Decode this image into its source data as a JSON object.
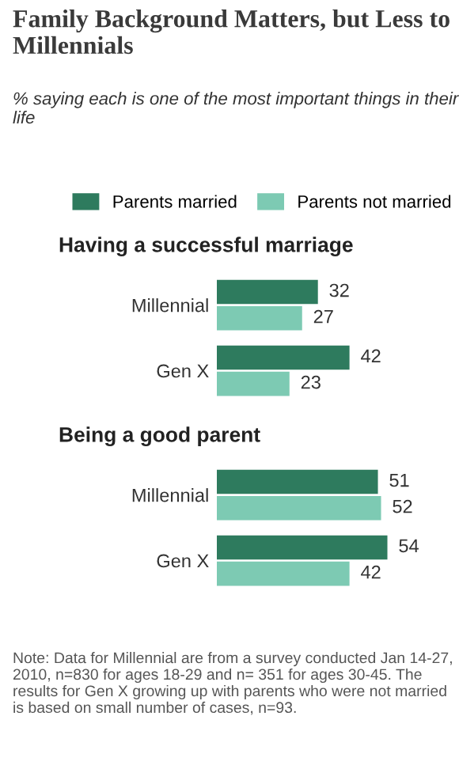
{
  "chart_data": [
    {
      "type": "bar",
      "orientation": "horizontal",
      "title": "Having a successful marriage",
      "annotations": [
        "Family Background Matters, but Less to Millennials",
        "% saying each is one of the most important things in their life"
      ],
      "categories": [
        "Millennial",
        "Gen X"
      ],
      "series": [
        {
          "name": "Parents married",
          "color": "#2e7b5e",
          "values": [
            32,
            42
          ]
        },
        {
          "name": "Parents not married",
          "color": "#7dcab3",
          "values": [
            27,
            23
          ]
        }
      ],
      "data_labels": true,
      "legend": "top",
      "grid": false
    },
    {
      "type": "bar",
      "orientation": "horizontal",
      "title": "Being a good parent",
      "annotations": [
        "Note: Data for Millennial are from a survey conducted Jan 14-27, 2010, n=830 for ages 18-29 and n= 351 for ages 30-45. The results for Gen X growing up with parents who were not married is based on small number of cases, n=93."
      ],
      "categories": [
        "Millennial",
        "Gen X"
      ],
      "series": [
        {
          "color": "#2e7b5e",
          "values": [
            51,
            54
          ]
        },
        {
          "color": "#7dcab3",
          "values": [
            52,
            42
          ]
        }
      ],
      "data_labels": true,
      "grid": false
    }
  ]
}
